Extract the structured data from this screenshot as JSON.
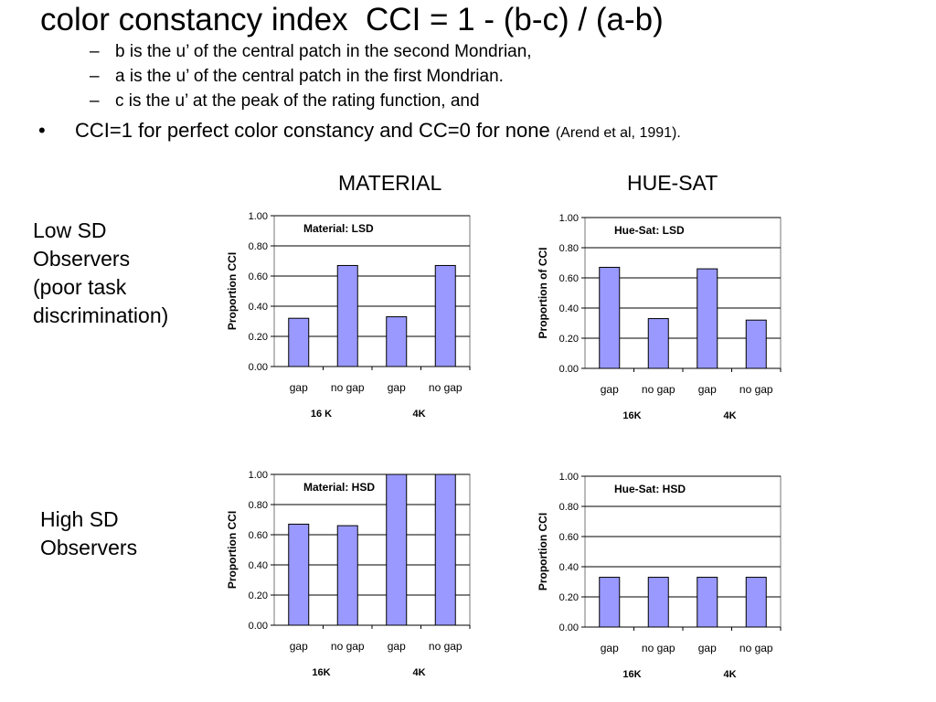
{
  "slide": {
    "title": "color constancy index  CCI = 1 - (b-c) / (a-b)",
    "subitems": [
      "b is the u’ of the central patch in the second Mondrian,",
      "a is the u’ of the central patch in the first Mondrian.",
      "c is the u’ at the peak of the rating function, and"
    ],
    "subitem_dash": "–",
    "bullet_mark": "•",
    "bullet_main": "CCI=1 for perfect color constancy and CC=0 for none",
    "bullet_cite": "(Arend et al, 1991).",
    "col_headers": [
      "MATERIAL",
      "HUE-SAT"
    ],
    "row_labels": [
      [
        "Low SD",
        "Observers",
        "(poor task",
        "discrimination)"
      ],
      [
        "High SD",
        "Observers"
      ]
    ]
  },
  "colors": {
    "bar_fill": "#9999ff",
    "bar_stroke": "#000000",
    "grid": "#000000"
  },
  "chart_data": [
    {
      "type": "bar",
      "title": "Material: LSD",
      "ylabel": "Proportion CCI",
      "xlabel": "",
      "categories": [
        "gap",
        "no gap",
        "gap",
        "no gap"
      ],
      "groups": [
        "16 K",
        "4K"
      ],
      "values": [
        0.32,
        0.67,
        0.33,
        0.67
      ],
      "ylim": [
        0,
        1
      ],
      "yticks": [
        "0.00",
        "0.20",
        "0.40",
        "0.60",
        "0.80",
        "1.00"
      ],
      "grid": true,
      "legend": "none"
    },
    {
      "type": "bar",
      "title": "Hue-Sat: LSD",
      "ylabel": "Proportion of CCI",
      "xlabel": "",
      "categories": [
        "gap",
        "no gap",
        "gap",
        "no gap"
      ],
      "groups": [
        "16K",
        "4K"
      ],
      "values": [
        0.67,
        0.33,
        0.66,
        0.32
      ],
      "ylim": [
        0,
        1
      ],
      "yticks": [
        "0.00",
        "0.20",
        "0.40",
        "0.60",
        "0.80",
        "1.00"
      ],
      "grid": true,
      "legend": "none"
    },
    {
      "type": "bar",
      "title": "Material: HSD",
      "ylabel": "Proportion CCI",
      "xlabel": "",
      "categories": [
        "gap",
        "no gap",
        "gap",
        "no gap"
      ],
      "groups": [
        "16K",
        "4K"
      ],
      "values": [
        0.67,
        0.66,
        1.0,
        1.0
      ],
      "ylim": [
        0,
        1
      ],
      "yticks": [
        "0.00",
        "0.20",
        "0.40",
        "0.60",
        "0.80",
        "1.00"
      ],
      "grid": true,
      "legend": "none"
    },
    {
      "type": "bar",
      "title": "Hue-Sat: HSD",
      "ylabel": "Proportion CCI",
      "xlabel": "",
      "categories": [
        "gap",
        "no gap",
        "gap",
        "no gap"
      ],
      "groups": [
        "16K",
        "4K"
      ],
      "values": [
        0.33,
        0.33,
        0.33,
        0.33
      ],
      "ylim": [
        0,
        1
      ],
      "yticks": [
        "0.00",
        "0.20",
        "0.40",
        "0.60",
        "0.80",
        "1.00"
      ],
      "grid": true,
      "legend": "none"
    }
  ]
}
